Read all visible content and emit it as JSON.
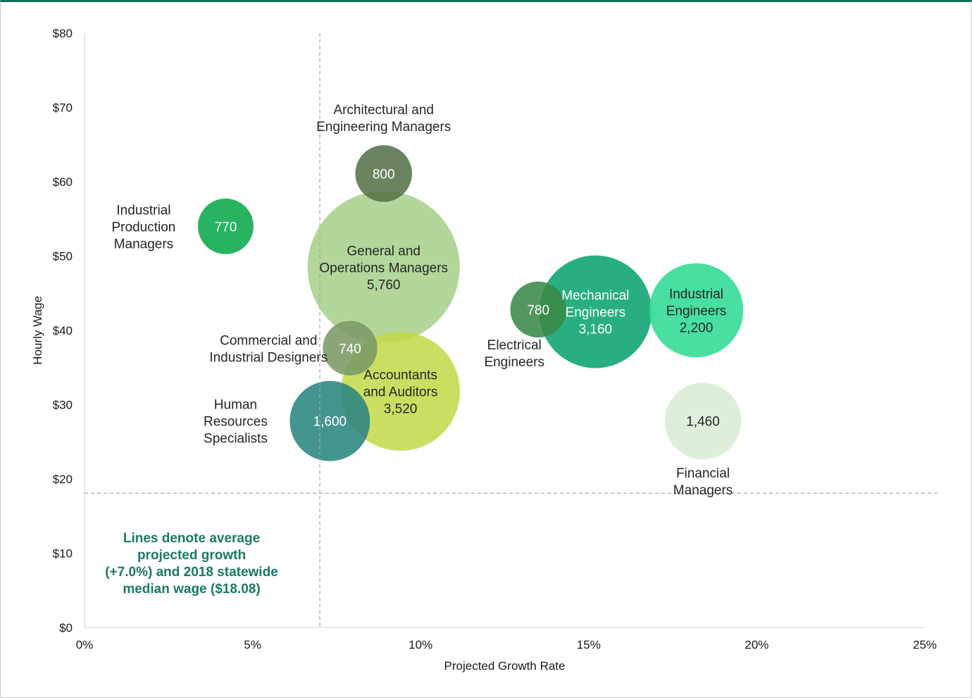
{
  "chart_data": {
    "type": "scatter",
    "subtype": "bubble",
    "xlabel": "Projected Growth Rate",
    "ylabel": "Hourly Wage",
    "xlim": [
      0,
      25
    ],
    "ylim": [
      0,
      80
    ],
    "x_ticks": [
      "0%",
      "5%",
      "10%",
      "15%",
      "20%",
      "25%"
    ],
    "y_ticks": [
      "$0",
      "$10",
      "$20",
      "$30",
      "$40",
      "$50",
      "$60",
      "$70",
      "$80"
    ],
    "reference_lines": {
      "avg_growth_pct": 7.0,
      "median_wage": 18.08
    },
    "annotation": [
      "Lines denote average",
      "projected growth",
      "(+7.0%) and 2018 statewide",
      "median wage ($18.08)"
    ],
    "points": [
      {
        "name": [
          "General and",
          "Operations Managers"
        ],
        "label_pos": "inside",
        "x": 8.9,
        "y": 48.5,
        "size": 5760,
        "size_label": "5,760",
        "color": "#a8d08d"
      },
      {
        "name": [
          "Accountants",
          "and Auditors"
        ],
        "label_pos": "inside",
        "x": 9.4,
        "y": 31.8,
        "size": 3520,
        "size_label": "3,520",
        "color": "#c3d94c"
      },
      {
        "name": [
          "Mechanical",
          "Engineers"
        ],
        "label_pos": "inside",
        "x": 15.2,
        "y": 42.5,
        "size": 3160,
        "size_label": "3,160",
        "color": "#0aa370",
        "text_color": "#ffffff"
      },
      {
        "name": [
          "Industrial",
          "Engineers"
        ],
        "label_pos": "inside",
        "x": 18.2,
        "y": 42.7,
        "size": 2200,
        "size_label": "2,200",
        "color": "#2fdb94"
      },
      {
        "name": [
          "Human",
          "Resources",
          "Specialists"
        ],
        "label_pos": "left",
        "x": 7.3,
        "y": 27.8,
        "size": 1600,
        "size_label": "1,600",
        "color": "#2a8580",
        "text_color": "#ffffff"
      },
      {
        "name": [
          "Financial",
          "Managers"
        ],
        "label_pos": "below",
        "x": 18.4,
        "y": 27.8,
        "size": 1460,
        "size_label": "1,460",
        "color": "#d9ecd6"
      },
      {
        "name": [
          "Architectural and",
          "Engineering Managers"
        ],
        "label_pos": "above",
        "x": 8.9,
        "y": 61.1,
        "size": 800,
        "size_label": "800",
        "color": "#56734a",
        "text_color": "#ffffff"
      },
      {
        "name": [
          "Electrical",
          "Engineers"
        ],
        "label_pos": "below-left",
        "x": 13.5,
        "y": 42.8,
        "size": 780,
        "size_label": "780",
        "color": "#3a8a48",
        "text_color": "#ffffff"
      },
      {
        "name": [
          "Industrial",
          "Production",
          "Managers"
        ],
        "label_pos": "left",
        "x": 4.2,
        "y": 54.0,
        "size": 770,
        "size_label": "770",
        "color": "#0aa84a",
        "text_color": "#ffffff"
      },
      {
        "name": [
          "Commercial and",
          "Industrial Designers"
        ],
        "label_pos": "left",
        "x": 7.9,
        "y": 37.6,
        "size": 740,
        "size_label": "740",
        "color": "#7a9a66",
        "text_color": "#ffffff"
      }
    ]
  }
}
